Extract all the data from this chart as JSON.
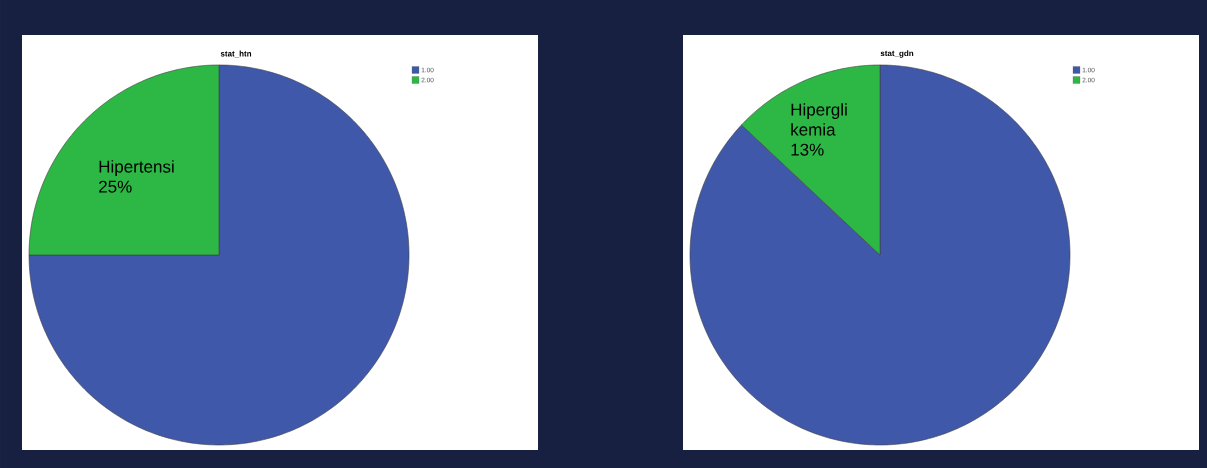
{
  "chart_data": [
    {
      "type": "pie",
      "title": "stat_htn",
      "categories": [
        "1.00",
        "2.00"
      ],
      "values": [
        75,
        25
      ],
      "colors": [
        "#3f58a9",
        "#2db846"
      ],
      "legend": "top right",
      "annotations": [
        "Hipertensi",
        "25%"
      ]
    },
    {
      "type": "pie",
      "title": "stat_gdn",
      "categories": [
        "1.00",
        "2.00"
      ],
      "values": [
        87,
        13
      ],
      "colors": [
        "#3f58a9",
        "#2db846"
      ],
      "legend": "top right",
      "annotations": [
        "Hipergli",
        "kemia",
        "13%"
      ]
    }
  ]
}
